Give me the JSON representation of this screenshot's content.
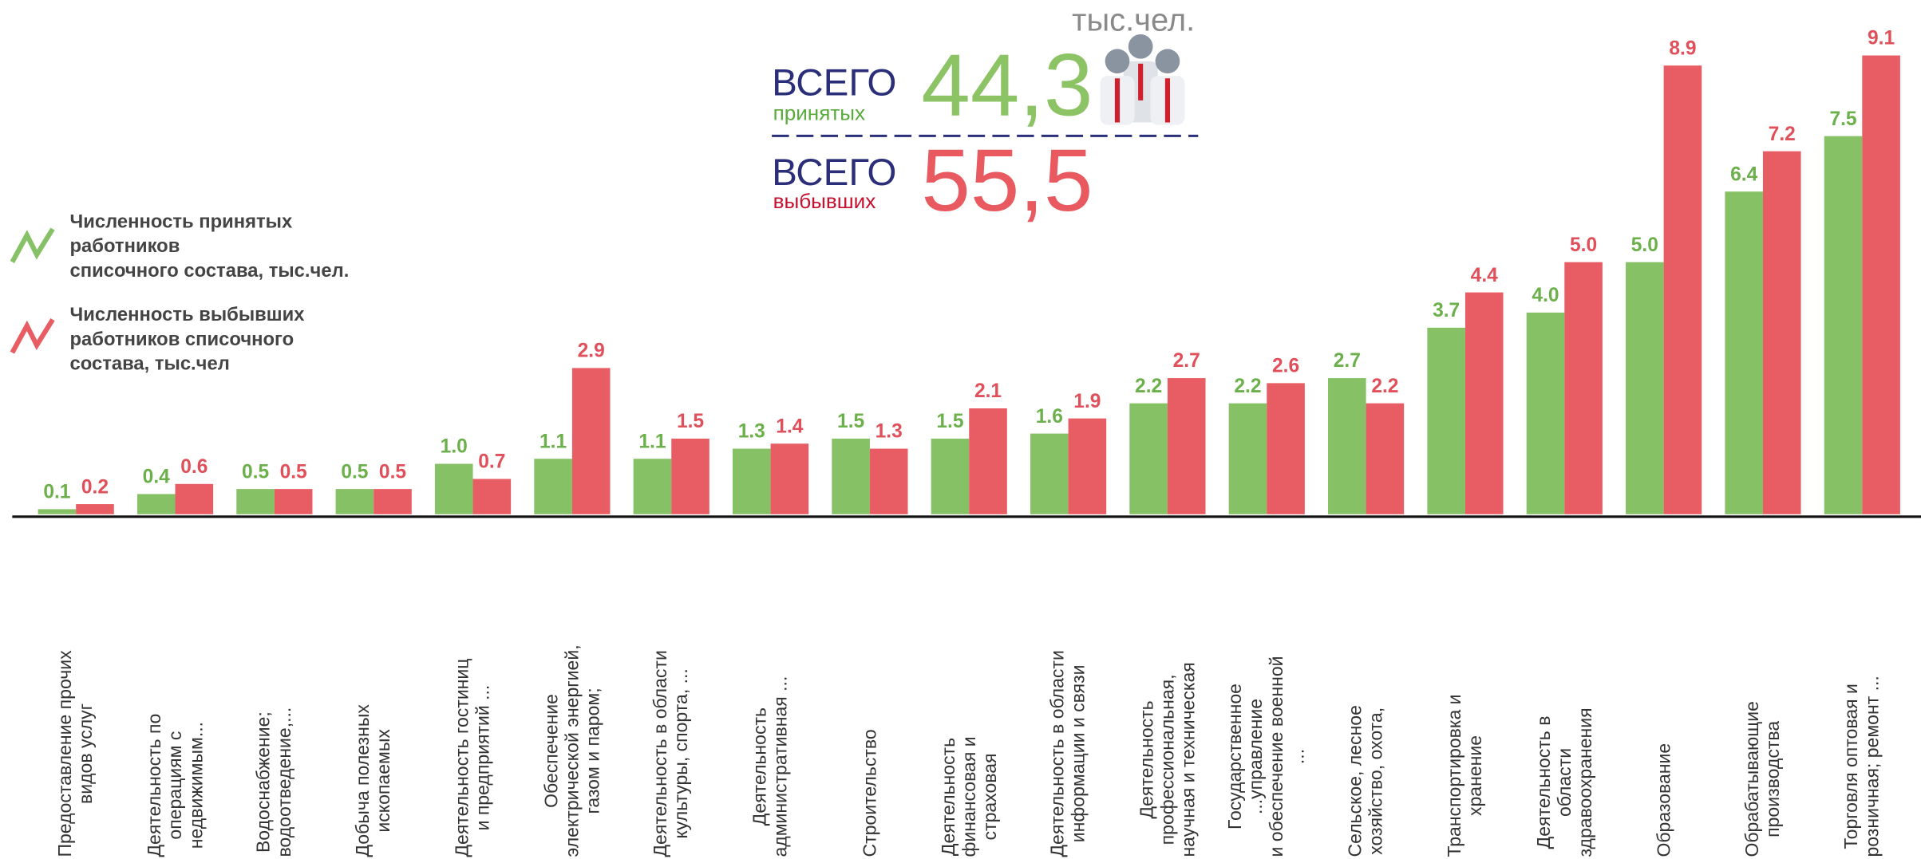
{
  "chart_data": {
    "type": "bar",
    "unit": "тыс.чел.",
    "summary": [
      {
        "label": "ВСЕГО",
        "sublabel": "принятых",
        "total": "44,3"
      },
      {
        "label": "ВСЕГО",
        "sublabel": "выбывших",
        "total": "55,5"
      }
    ],
    "categories": [
      "Предоставление прочих\nвидов услуг",
      "Деятельность по\nоперациям с\nнедвижимым...",
      "Водоснабжение;\nводоотведение,...",
      "Добыча  полезных\nископаемых",
      "Деятельность гостиниц\nи предприятий  ...",
      "Обеспечение\nэлектрической энергией,\nгазом и паром;",
      "Деятельность в области\nкультуры, спорта, ...",
      "Деятельность\nадминистративная  ...",
      "Строительство",
      "Деятельность\nфинансовая  и\nстраховая",
      "Деятельность в области\nинформации и связи",
      "Деятельность\nпрофессиональная,\nнаучная  и техническая",
      "Государственное\n...управление\nи обеспечение военной\n...",
      "Сельское, лесное\nхозяйство, охота,",
      "Транспортировка и\nхранение",
      "Деятельность в\nобласти\nздравоохранения",
      "Образование",
      "Обрабатывающие\nпроизводства",
      "Торговля оптовая и\nрозничная; ремонт ..."
    ],
    "series": [
      {
        "name": "Численность принятых\nработников\nсписочного состава, тыс.чел.",
        "color": "#86c166",
        "label_color": "#6bb04a",
        "values": [
          0.1,
          0.4,
          0.5,
          0.5,
          1.0,
          1.1,
          1.1,
          1.3,
          1.5,
          1.5,
          1.6,
          2.2,
          2.2,
          2.7,
          3.7,
          4.0,
          5.0,
          6.4,
          7.5
        ],
        "value_labels": [
          "0.1",
          "0.4",
          "0.5",
          "0.5",
          "1.0",
          "1.1",
          "1.1",
          "1.3",
          "1.5",
          "1.5",
          "1.6",
          "2.2",
          "2.2",
          "2.7",
          "3.7",
          "4.0",
          "5.0",
          "6.4",
          "7.5"
        ]
      },
      {
        "name": "Численность выбывших\n работников списочного\n состава, тыс.чел",
        "color": "#e85d63",
        "label_color": "#e0505a",
        "values": [
          0.2,
          0.6,
          0.5,
          0.5,
          0.7,
          2.9,
          1.5,
          1.4,
          1.3,
          2.1,
          1.9,
          2.7,
          2.6,
          2.2,
          4.4,
          5.0,
          8.9,
          7.2,
          9.1
        ],
        "value_labels": [
          "0.2",
          "0.6",
          "0.5",
          "0.5",
          "0.7",
          "2.9",
          "1.5",
          "1.4",
          "1.3",
          "2.1",
          "1.9",
          "2.7",
          "2.6",
          "2.2",
          "4.4",
          "5.0",
          "8.9",
          "7.2",
          "9.1"
        ]
      }
    ],
    "ylim": [
      0,
      10.2
    ]
  }
}
